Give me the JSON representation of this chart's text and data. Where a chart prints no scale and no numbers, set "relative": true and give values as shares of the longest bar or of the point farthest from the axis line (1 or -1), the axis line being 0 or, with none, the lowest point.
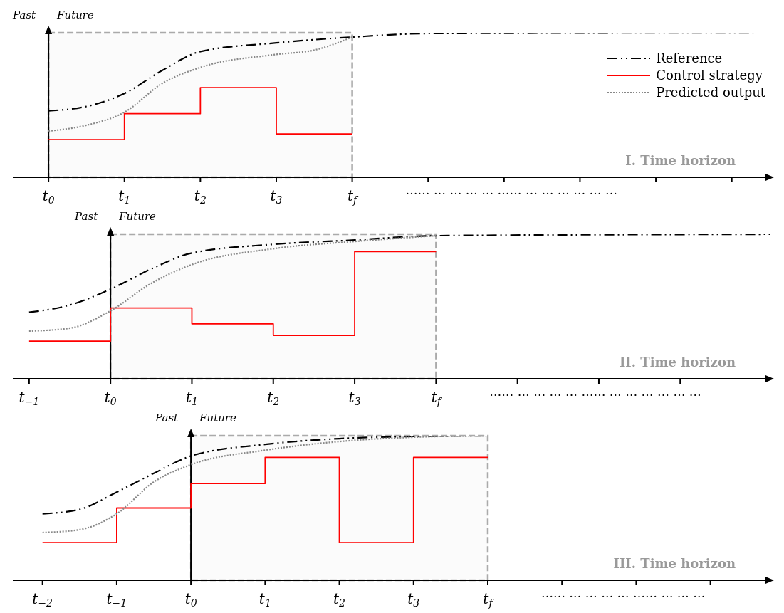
{
  "chart_data": [
    {
      "type": "line",
      "relative": true,
      "marker": "none",
      "legend": "top right",
      "xlim": [
        -0.47,
        9.5
      ],
      "xticks": [
        {
          "value": 0,
          "label": "t$_{0}$"
        },
        {
          "value": 1,
          "label": "t$_{1}$"
        },
        {
          "value": 2,
          "label": "t$_{2}$"
        },
        {
          "value": 3,
          "label": "t$_{3}$"
        },
        {
          "value": 4,
          "label": "t$_{f}$"
        },
        {
          "value": 5,
          "label": null
        },
        {
          "value": 6,
          "label": null
        },
        {
          "value": 7,
          "label": null
        },
        {
          "value": 8,
          "label": null
        },
        {
          "value": 9,
          "label": null
        }
      ],
      "ref_lines": [
        {
          "axis": "x",
          "value": 0,
          "color": "#000000"
        }
      ],
      "bands": [
        {
          "axis": "x",
          "from": 0,
          "to": 4,
          "color": "#aaaaaa"
        }
      ],
      "annotations": [
        "Past",
        "Future",
        "…… … … … … …… … … … … … …",
        "I. Time horizon"
      ],
      "series": [
        {
          "name": "Reference",
          "color": "#000000",
          "line_style": "dashed",
          "x": [
            0,
            0.5,
            1,
            1.5,
            2,
            3,
            4,
            5,
            9.5
          ],
          "values": [
            0.46,
            0.49,
            0.58,
            0.74,
            0.87,
            0.93,
            0.97,
            0.995,
            1
          ]
        },
        {
          "name": "Control strategy",
          "color": "#ff0000",
          "type": "step",
          "line_style": "solid",
          "x": [
            0,
            1,
            2,
            3,
            4
          ],
          "values": [
            0.26,
            0.44,
            0.62,
            0.3,
            0.3
          ]
        },
        {
          "name": "Predicted output",
          "color": "#888888",
          "line_style": "dotted",
          "x": [
            0,
            0.5,
            1,
            1.5,
            2,
            3,
            3.5,
            4
          ],
          "values": [
            0.32,
            0.36,
            0.45,
            0.65,
            0.76,
            0.85,
            0.88,
            0.97
          ]
        }
      ]
    },
    {
      "type": "line",
      "relative": true,
      "marker": "none",
      "xlim": [
        -1.2,
        8.1
      ],
      "xticks": [
        {
          "value": -1,
          "label": "t$_{−1}$"
        },
        {
          "value": 0,
          "label": "t$_{0}$"
        },
        {
          "value": 1,
          "label": "t$_{1}$"
        },
        {
          "value": 2,
          "label": "t$_{2}$"
        },
        {
          "value": 3,
          "label": "t$_{3}$"
        },
        {
          "value": 4,
          "label": "t$_{f}$"
        },
        {
          "value": 5,
          "label": null
        },
        {
          "value": 6,
          "label": null
        },
        {
          "value": 7,
          "label": null
        }
      ],
      "ref_lines": [
        {
          "axis": "x",
          "value": 0,
          "color": "#000000"
        }
      ],
      "bands": [
        {
          "axis": "x",
          "from": 0,
          "to": 4,
          "color": "#aaaaaa"
        }
      ],
      "annotations": [
        "Past",
        "Future",
        "…… … … … … …… … … … … … …",
        "II. Time horizon"
      ],
      "series": [
        {
          "color": "#000000",
          "line_style": "dashed",
          "x": [
            -1,
            -0.5,
            0,
            0.5,
            1,
            2,
            3,
            4,
            8.1
          ],
          "values": [
            0.46,
            0.51,
            0.62,
            0.76,
            0.87,
            0.93,
            0.96,
            0.99,
            1
          ]
        },
        {
          "color": "#ff0000",
          "type": "step",
          "line_style": "solid",
          "x": [
            -1,
            0,
            1,
            2,
            3,
            4
          ],
          "values": [
            0.26,
            0.49,
            0.38,
            0.3,
            0.88,
            0.88
          ]
        },
        {
          "color": "#888888",
          "line_style": "dotted",
          "x": [
            -1,
            -0.5,
            0,
            0.5,
            1,
            2,
            3,
            4
          ],
          "values": [
            0.33,
            0.35,
            0.47,
            0.66,
            0.79,
            0.9,
            0.95,
            0.99
          ]
        }
      ]
    },
    {
      "type": "line",
      "relative": true,
      "marker": "none",
      "xlim": [
        -2.4,
        7.8
      ],
      "xticks": [
        {
          "value": -2,
          "label": "t$_{−2}$"
        },
        {
          "value": -1,
          "label": "t$_{−1}$"
        },
        {
          "value": 0,
          "label": "t$_{0}$"
        },
        {
          "value": 1,
          "label": "t$_{1}$"
        },
        {
          "value": 2,
          "label": "t$_{2}$"
        },
        {
          "value": 3,
          "label": "t$_{3}$"
        },
        {
          "value": 4,
          "label": "t$_{f}$"
        },
        {
          "value": 5,
          "label": null
        },
        {
          "value": 6,
          "label": null
        },
        {
          "value": 7,
          "label": null
        }
      ],
      "ref_lines": [
        {
          "axis": "x",
          "value": 0,
          "color": "#000000"
        }
      ],
      "bands": [
        {
          "axis": "x",
          "from": 0,
          "to": 4,
          "color": "#aaaaaa"
        }
      ],
      "annotations": [
        "Past",
        "Future",
        "…… … … … … …… … … …",
        "III. Time horizon"
      ],
      "series": [
        {
          "color": "#000000",
          "line_style": "dashed",
          "x": [
            -2,
            -1.5,
            -1,
            -0.5,
            0,
            1,
            2,
            3,
            4,
            7.8
          ],
          "values": [
            0.46,
            0.49,
            0.61,
            0.74,
            0.86,
            0.94,
            0.98,
            0.995,
            1,
            1
          ]
        },
        {
          "color": "#ff0000",
          "type": "step",
          "line_style": "solid",
          "x": [
            -2,
            -1,
            0,
            1,
            2,
            3,
            4
          ],
          "values": [
            0.26,
            0.5,
            0.67,
            0.85,
            0.26,
            0.85,
            0.85
          ]
        },
        {
          "color": "#888888",
          "line_style": "dotted",
          "x": [
            -2,
            -1.5,
            -1,
            -0.5,
            0,
            1,
            2,
            3,
            4
          ],
          "values": [
            0.33,
            0.35,
            0.46,
            0.68,
            0.8,
            0.9,
            0.96,
            0.99,
            1
          ]
        }
      ]
    }
  ]
}
